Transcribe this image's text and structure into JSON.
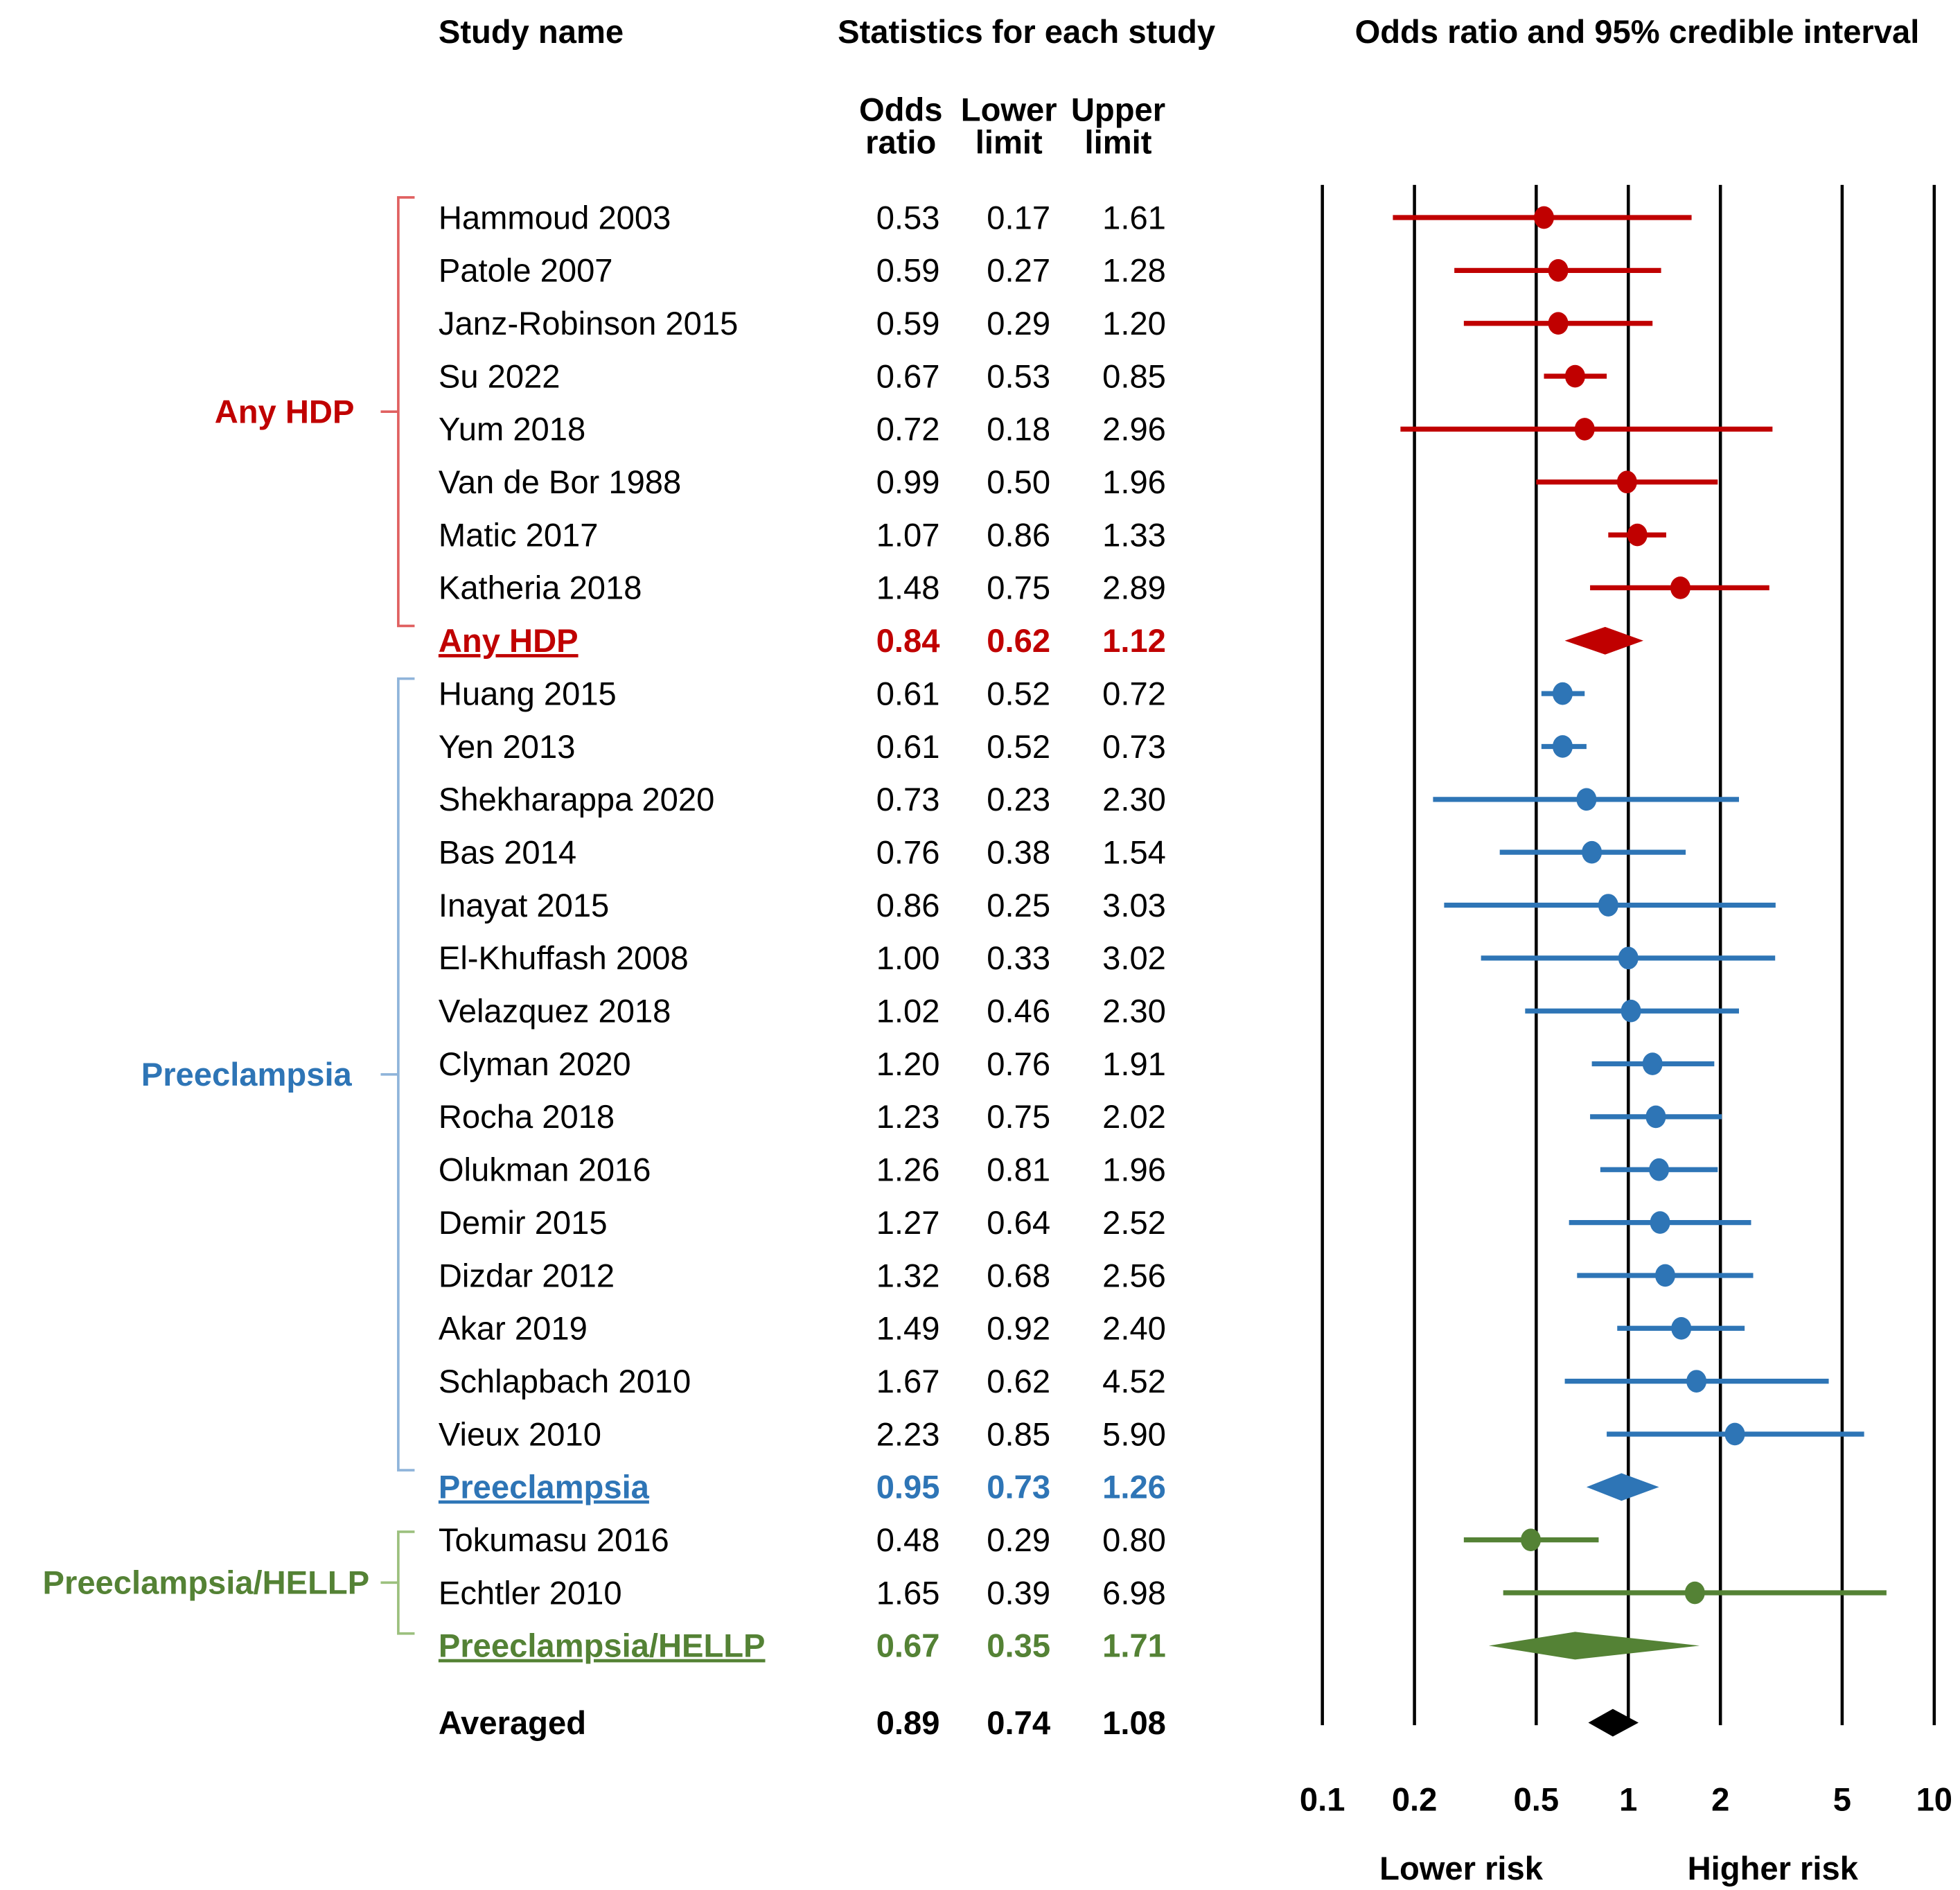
{
  "chart_data": {
    "type": "forest",
    "headers": {
      "study_name": "Study name",
      "statistics": "Statistics for each study",
      "plot_title": "Odds ratio and 95% credible interval",
      "col_or": [
        "Odds",
        "ratio"
      ],
      "col_lower": [
        "Lower",
        "limit"
      ],
      "col_upper": [
        "Upper",
        "limit"
      ]
    },
    "x_scale": "log",
    "xlim": [
      0.1,
      10
    ],
    "x_ticks": [
      "0.1",
      "0.2",
      "0.5",
      "1",
      "2",
      "5",
      "10"
    ],
    "x_tick_values": [
      0.1,
      0.2,
      0.5,
      1,
      2,
      5,
      10
    ],
    "direction_labels": {
      "left": "Lower risk",
      "right": "Higher risk"
    },
    "colors": {
      "any_hdp": "#C00000",
      "preeclampsia": "#2E75B6",
      "hellp": "#548235",
      "overall": "#000000"
    },
    "groups": [
      {
        "key": "any_hdp",
        "label": "Any HDP"
      },
      {
        "key": "preeclampsia",
        "label": "Preeclampsia"
      },
      {
        "key": "hellp",
        "label": "Preeclampsia/HELLP"
      }
    ],
    "rows": [
      {
        "name": "Hammoud 2003",
        "or": "0.53",
        "lo": "0.17",
        "hi": "1.61",
        "group": "any_hdp",
        "kind": "study"
      },
      {
        "name": "Patole 2007",
        "or": "0.59",
        "lo": "0.27",
        "hi": "1.28",
        "group": "any_hdp",
        "kind": "study"
      },
      {
        "name": "Janz-Robinson 2015",
        "or": "0.59",
        "lo": "0.29",
        "hi": "1.20",
        "group": "any_hdp",
        "kind": "study"
      },
      {
        "name": "Su 2022",
        "or": "0.67",
        "lo": "0.53",
        "hi": "0.85",
        "group": "any_hdp",
        "kind": "study"
      },
      {
        "name": "Yum 2018",
        "or": "0.72",
        "lo": "0.18",
        "hi": "2.96",
        "group": "any_hdp",
        "kind": "study"
      },
      {
        "name": "Van de Bor 1988",
        "or": "0.99",
        "lo": "0.50",
        "hi": "1.96",
        "group": "any_hdp",
        "kind": "study"
      },
      {
        "name": "Matic 2017",
        "or": "1.07",
        "lo": "0.86",
        "hi": "1.33",
        "group": "any_hdp",
        "kind": "study"
      },
      {
        "name": "Katheria 2018",
        "or": "1.48",
        "lo": "0.75",
        "hi": "2.89",
        "group": "any_hdp",
        "kind": "study"
      },
      {
        "name": "Any HDP",
        "or": "0.84",
        "lo": "0.62",
        "hi": "1.12",
        "group": "any_hdp",
        "kind": "pooled"
      },
      {
        "name": "Huang 2015",
        "or": "0.61",
        "lo": "0.52",
        "hi": "0.72",
        "group": "preeclampsia",
        "kind": "study"
      },
      {
        "name": "Yen 2013",
        "or": "0.61",
        "lo": "0.52",
        "hi": "0.73",
        "group": "preeclampsia",
        "kind": "study"
      },
      {
        "name": "Shekharappa 2020",
        "or": "0.73",
        "lo": "0.23",
        "hi": "2.30",
        "group": "preeclampsia",
        "kind": "study"
      },
      {
        "name": "Bas 2014",
        "or": "0.76",
        "lo": "0.38",
        "hi": "1.54",
        "group": "preeclampsia",
        "kind": "study"
      },
      {
        "name": "Inayat 2015",
        "or": "0.86",
        "lo": "0.25",
        "hi": "3.03",
        "group": "preeclampsia",
        "kind": "study"
      },
      {
        "name": "El-Khuffash 2008",
        "or": "1.00",
        "lo": "0.33",
        "hi": "3.02",
        "group": "preeclampsia",
        "kind": "study"
      },
      {
        "name": "Velazquez 2018",
        "or": "1.02",
        "lo": "0.46",
        "hi": "2.30",
        "group": "preeclampsia",
        "kind": "study"
      },
      {
        "name": "Clyman 2020",
        "or": "1.20",
        "lo": "0.76",
        "hi": "1.91",
        "group": "preeclampsia",
        "kind": "study"
      },
      {
        "name": "Rocha 2018",
        "or": "1.23",
        "lo": "0.75",
        "hi": "2.02",
        "group": "preeclampsia",
        "kind": "study"
      },
      {
        "name": "Olukman 2016",
        "or": "1.26",
        "lo": "0.81",
        "hi": "1.96",
        "group": "preeclampsia",
        "kind": "study"
      },
      {
        "name": "Demir 2015",
        "or": "1.27",
        "lo": "0.64",
        "hi": "2.52",
        "group": "preeclampsia",
        "kind": "study"
      },
      {
        "name": "Dizdar 2012",
        "or": "1.32",
        "lo": "0.68",
        "hi": "2.56",
        "group": "preeclampsia",
        "kind": "study"
      },
      {
        "name": "Akar 2019",
        "or": "1.49",
        "lo": "0.92",
        "hi": "2.40",
        "group": "preeclampsia",
        "kind": "study"
      },
      {
        "name": "Schlapbach 2010",
        "or": "1.67",
        "lo": "0.62",
        "hi": "4.52",
        "group": "preeclampsia",
        "kind": "study"
      },
      {
        "name": "Vieux 2010",
        "or": "2.23",
        "lo": "0.85",
        "hi": "5.90",
        "group": "preeclampsia",
        "kind": "study"
      },
      {
        "name": "Preeclampsia",
        "or": "0.95",
        "lo": "0.73",
        "hi": "1.26",
        "group": "preeclampsia",
        "kind": "pooled"
      },
      {
        "name": "Tokumasu 2016",
        "or": "0.48",
        "lo": "0.29",
        "hi": "0.80",
        "group": "hellp",
        "kind": "study"
      },
      {
        "name": "Echtler 2010",
        "or": "1.65",
        "lo": "0.39",
        "hi": "6.98",
        "group": "hellp",
        "kind": "study"
      },
      {
        "name": "Preeclampsia/HELLP",
        "or": "0.67",
        "lo": "0.35",
        "hi": "1.71",
        "group": "hellp",
        "kind": "pooled"
      },
      {
        "name": "Averaged",
        "or": "0.89",
        "lo": "0.74",
        "hi": "1.08",
        "group": "overall",
        "kind": "overall"
      }
    ]
  }
}
